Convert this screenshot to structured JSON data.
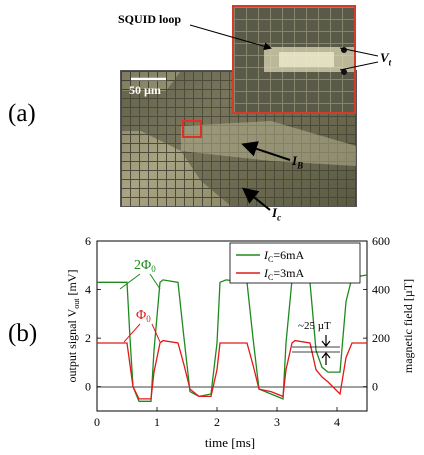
{
  "figure": {
    "panel_a": "(a)",
    "panel_b": "(b)",
    "scale_bar": "50 µm",
    "squid_label": "SQUID loop",
    "vt_main": "V",
    "vt_sub": "t",
    "ib_main": "I",
    "ib_sub": "B",
    "ic_main": "I",
    "ic_sub": "c"
  },
  "chart_data": {
    "type": "line",
    "xlabel": "time [ms]",
    "ylabel_left_pre": "output signal V",
    "ylabel_left_sub": "out",
    "ylabel_left_post": " [mV]",
    "ylabel_right": "magnetic field [µT]",
    "xlim": [
      0,
      4.5
    ],
    "ylim_left": [
      -1,
      6
    ],
    "ylim_right": [
      0,
      600
    ],
    "x_ticks": [
      "0",
      "1",
      "2",
      "3",
      "4"
    ],
    "y_ticks_left": [
      "0",
      "2",
      "4",
      "6"
    ],
    "y_ticks_right": [
      "0",
      "200",
      "400",
      "600"
    ],
    "grid": false,
    "legend_position": "top-right",
    "annotations": {
      "two_phi": "2Φ",
      "phi": "Φ",
      "phi_sub": "0",
      "field_step": "~25 µT"
    },
    "series": [
      {
        "name_main": "I",
        "name_sub": "C",
        "name_value": "=6mA",
        "color": "#1e8a1e",
        "x": [
          0,
          0.5,
          0.55,
          0.6,
          0.7,
          0.9,
          0.95,
          1.05,
          1.1,
          1.35,
          1.45,
          1.55,
          1.7,
          1.9,
          2.0,
          2.05,
          2.15,
          2.5,
          2.6,
          2.7,
          2.9,
          3.1,
          3.15,
          3.25,
          3.3,
          3.55,
          3.65,
          3.75,
          3.85,
          4.05,
          4.15,
          4.25,
          4.5
        ],
        "y": [
          4.3,
          4.3,
          2.0,
          0.0,
          -0.6,
          -0.6,
          1.5,
          4.3,
          4.4,
          4.3,
          2.0,
          -0.2,
          -0.4,
          -0.3,
          1.8,
          4.3,
          4.4,
          4.3,
          2.0,
          -0.1,
          -0.3,
          -0.5,
          1.8,
          4.4,
          4.5,
          4.3,
          1.5,
          0.8,
          0.6,
          0.6,
          3.5,
          4.5,
          4.6
        ]
      },
      {
        "name_main": "I",
        "name_sub": "C",
        "name_value": "=3mA",
        "color": "#e01a1a",
        "x": [
          0,
          0.5,
          0.55,
          0.6,
          0.7,
          0.9,
          0.95,
          1.05,
          1.1,
          1.35,
          1.45,
          1.55,
          1.7,
          1.9,
          2.0,
          2.05,
          2.15,
          2.5,
          2.6,
          2.7,
          2.9,
          3.1,
          3.15,
          3.25,
          3.3,
          3.55,
          3.65,
          3.75,
          3.85,
          4.05,
          4.15,
          4.25,
          4.5
        ],
        "y": [
          1.8,
          1.8,
          0.9,
          0.0,
          -0.5,
          -0.5,
          0.6,
          1.8,
          1.9,
          1.8,
          0.9,
          -0.1,
          -0.4,
          -0.4,
          0.7,
          1.8,
          1.8,
          1.8,
          0.9,
          -0.1,
          -0.2,
          -0.4,
          0.7,
          1.8,
          1.9,
          1.8,
          0.7,
          0.4,
          0.2,
          -0.3,
          1.2,
          1.8,
          1.8
        ]
      }
    ]
  }
}
